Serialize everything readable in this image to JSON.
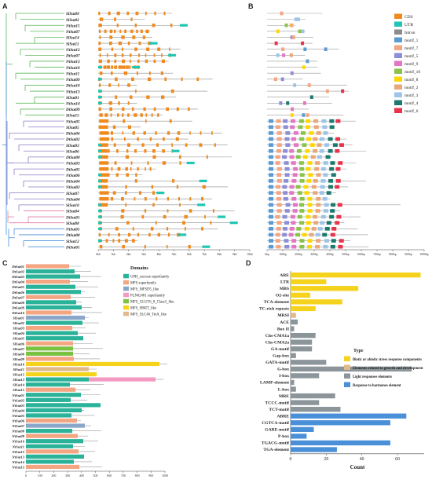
{
  "panels": {
    "A": "A",
    "B": "B",
    "C": "C",
    "D": "D"
  },
  "panelA": {
    "genes": [
      "SlSut09",
      "SlSut02",
      "NtSut15",
      "NtSut07",
      "SlSut14",
      "SlSut11",
      "NtSut12",
      "DtSut07",
      "NtSut13",
      "NtSut10",
      "NtSut11",
      "NtSut09",
      "DtSut10",
      "NtSut13",
      "SlSut01",
      "NtSut14",
      "DtSut09",
      "SlSut15",
      "NtSut05",
      "SlSut05",
      "DtSut06",
      "DtSut02",
      "SlSut03",
      "SlSut06",
      "DtSut08",
      "NtSut03",
      "DtSut05",
      "NtSut06",
      "DtSut04",
      "NtSut02",
      "SlSut07",
      "NtSut04",
      "SlSut10",
      "SlSut04",
      "DtSut01",
      "SlSut08",
      "NtSut01",
      "DtSut08",
      "SlSut12",
      "DtSut01"
    ],
    "axis": [
      "0kb",
      "1kb",
      "2kb",
      "3kb",
      "4kb",
      "5kb",
      "6kb",
      "7kb",
      "8kb",
      "9kb",
      "10kb"
    ]
  },
  "panelB": {
    "legend": [
      {
        "label": "CDS",
        "color": "#f08a1c"
      },
      {
        "label": "UTR",
        "color": "#1fc6b4"
      },
      {
        "label": "Intron",
        "color": "#8c8c8c"
      },
      {
        "label": "motif_1",
        "color": "#5b9bd5"
      },
      {
        "label": "motif_7",
        "color": "#f4a582"
      },
      {
        "label": "motif_5",
        "color": "#8e8ed6"
      },
      {
        "label": "motif_9",
        "color": "#e377c2"
      },
      {
        "label": "motif_10",
        "color": "#8bc34a"
      },
      {
        "label": "motif_8",
        "color": "#ffd700"
      },
      {
        "label": "motif_2",
        "color": "#e8a87c"
      },
      {
        "label": "motif_3",
        "color": "#9ec5e8"
      },
      {
        "label": "motif_4",
        "color": "#1b7a6e"
      },
      {
        "label": "motif_6",
        "color": "#e8334a"
      }
    ],
    "axis": [
      "0bp",
      "100bp",
      "200bp",
      "300bp",
      "400bp",
      "500bp",
      "600bp",
      "700bp",
      "800bp",
      "900bp",
      "1000bp"
    ]
  },
  "panelC": {
    "legend_title": "Domains",
    "legend": [
      {
        "label": "GPH_sucrose superfamily",
        "color": "#2bb39a"
      },
      {
        "label": "MFS superfamily",
        "color": "#f4a582"
      },
      {
        "label": "MFS_MFSD5_like",
        "color": "#8aa6c8"
      },
      {
        "label": "PLN02481 superfamily",
        "color": "#f29ac2"
      },
      {
        "label": "MFS_GLUT6_8_Class3_like",
        "color": "#7cc242"
      },
      {
        "label": "MFS_HMIT_like",
        "color": "#f5d21c"
      },
      {
        "label": "MFS_SLC46_TetA_like",
        "color": "#e2b98a"
      }
    ],
    "genes": [
      "DtSut01",
      "DtSut02",
      "DtSut03",
      "DtSut04",
      "DtSut05",
      "DtSut06",
      "DtSut07",
      "DtSut08",
      "DtSut09",
      "DtSut10",
      "SlSut01",
      "SlSut02",
      "SlSut03",
      "SlSut04",
      "SlSut05",
      "SlSut06",
      "SlSut07",
      "SlSut08",
      "SlSut09",
      "SlSut10",
      "SlSut11",
      "SlSut12",
      "SlSut13",
      "SlSut14",
      "SlSut15",
      "NtSut01",
      "NtSut02",
      "NtSut03",
      "NtSut04",
      "NtSut05",
      "NtSut06",
      "NtSut07",
      "NtSut08",
      "NtSut09",
      "NtSut10",
      "NtSut11",
      "NtSut12",
      "NtSut13",
      "NtSut14",
      "NtSut15"
    ],
    "axis": [
      "0",
      "100",
      "200",
      "300",
      "400",
      "500",
      "600",
      "700",
      "800",
      "900",
      "1000"
    ]
  },
  "chart_data": {
    "type": "bar",
    "orientation": "horizontal",
    "xlabel": "Count",
    "xticks": [
      0,
      20,
      40,
      60
    ],
    "xlim": [
      0,
      75
    ],
    "legend_title": "Type",
    "legend": [
      {
        "name": "Biotic or abiotic stress response components",
        "color": "#f5d21c"
      },
      {
        "name": "Elements related to growth and development",
        "color": "#e2b98a"
      },
      {
        "name": "Light responses elements",
        "color": "#8c959a"
      },
      {
        "name": "Response to hormones element",
        "color": "#4a90d9"
      }
    ],
    "categories": [
      "ARE",
      "LTR",
      "MBS",
      "O2-site",
      "TCA-element",
      "TC-rich repeats",
      "MRSI",
      "ACE",
      "Box II",
      "Chs-CMA1a",
      "Chs-CMA2a",
      "GA-motif",
      "Gap-box",
      "GATA-motif",
      "G-box",
      "I-box",
      "LAMP-element",
      "L-box",
      "MRE",
      "TCCC-motif",
      "TCT-motif",
      "ABRE",
      "CGTCA-motif",
      "GARE-motif",
      "P-box",
      "TGACG-motif",
      "TGA-element"
    ],
    "values": [
      73,
      20,
      38,
      11,
      29,
      14,
      3,
      4,
      2,
      14,
      12,
      12,
      3,
      20,
      68,
      16,
      2,
      3,
      25,
      16,
      28,
      65,
      56,
      13,
      9,
      56,
      26
    ],
    "groups": [
      0,
      0,
      0,
      0,
      0,
      0,
      1,
      2,
      2,
      2,
      2,
      2,
      2,
      2,
      2,
      2,
      2,
      2,
      2,
      2,
      2,
      3,
      3,
      3,
      3,
      3,
      3
    ]
  }
}
